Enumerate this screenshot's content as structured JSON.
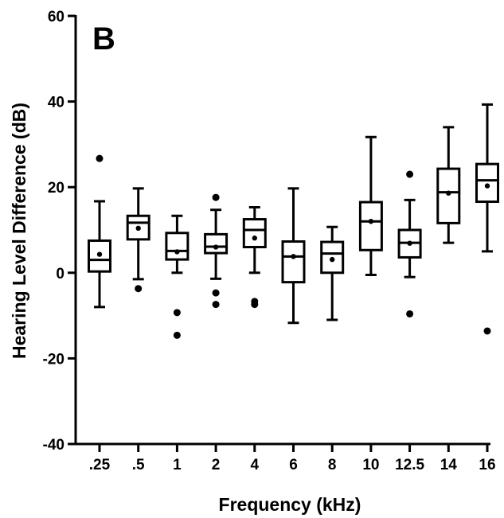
{
  "panel_label": "B",
  "chart_data": {
    "type": "box",
    "xlabel": "Frequency (kHz)",
    "ylabel": "Hearing Level Difference (dB)",
    "ylim": [
      -40,
      60
    ],
    "yticks": [
      -40,
      -20,
      0,
      20,
      40,
      60
    ],
    "yticklabels": [
      "-40",
      "-20",
      "0",
      "20",
      "40",
      "60"
    ],
    "categories": [
      ".25",
      ".5",
      "1",
      "2",
      "4",
      "6",
      "8",
      "10",
      "12.5",
      "14",
      "16"
    ],
    "boxes": [
      {
        "whisker_low": -8,
        "q1": 0.3,
        "median": 3,
        "q3": 7.5,
        "whisker_high": 16.7,
        "mean": 4.3,
        "outliers": [
          26.7
        ]
      },
      {
        "whisker_low": -1.5,
        "q1": 7.8,
        "median": 11.7,
        "q3": 13.3,
        "whisker_high": 19.7,
        "mean": 10.4,
        "outliers": [
          -3.7
        ]
      },
      {
        "whisker_low": 0,
        "q1": 3.1,
        "median": 5.1,
        "q3": 9.3,
        "whisker_high": 13.3,
        "mean": 4.9,
        "outliers": [
          -9.3,
          -14.6
        ]
      },
      {
        "whisker_low": -1.4,
        "q1": 4.6,
        "median": 6.1,
        "q3": 9,
        "whisker_high": 14.7,
        "mean": 6,
        "outliers": [
          17.6,
          -4.7,
          -7.4
        ]
      },
      {
        "whisker_low": 0,
        "q1": 6,
        "median": 10,
        "q3": 12.5,
        "whisker_high": 15.3,
        "mean": 8.1,
        "outliers": [
          -7.4,
          -6.7
        ]
      },
      {
        "whisker_low": -11.7,
        "q1": -2.2,
        "median": 3.8,
        "q3": 7.3,
        "whisker_high": 19.7,
        "mean": 3.8,
        "outliers": []
      },
      {
        "whisker_low": -11,
        "q1": 0,
        "median": 4.5,
        "q3": 7.2,
        "whisker_high": 10.7,
        "mean": 3.1,
        "outliers": []
      },
      {
        "whisker_low": -0.5,
        "q1": 5.3,
        "median": 12,
        "q3": 16.5,
        "whisker_high": 31.7,
        "mean": 12,
        "outliers": []
      },
      {
        "whisker_low": -1,
        "q1": 3.6,
        "median": 7,
        "q3": 10,
        "whisker_high": 17,
        "mean": 6.9,
        "outliers": [
          23,
          -9.6
        ]
      },
      {
        "whisker_low": 7,
        "q1": 11.6,
        "median": 18.8,
        "q3": 24.3,
        "whisker_high": 34,
        "mean": 18.6,
        "outliers": []
      },
      {
        "whisker_low": 5,
        "q1": 16.6,
        "median": 21.6,
        "q3": 25.4,
        "whisker_high": 39.3,
        "mean": 20.3,
        "outliers": [
          -13.6
        ]
      }
    ]
  }
}
